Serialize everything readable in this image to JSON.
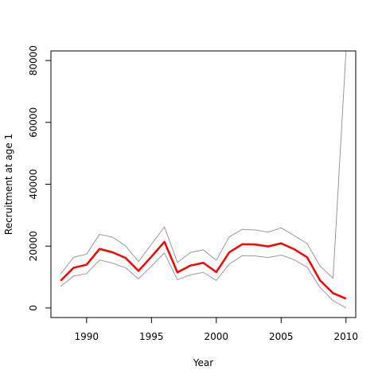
{
  "chart_data": {
    "type": "line",
    "title": "",
    "xlabel": "Year",
    "ylabel": "Recruitment at age 1",
    "xlim": [
      1987.25,
      2010.75
    ],
    "ylim": [
      -3100,
      83100
    ],
    "xticks": [
      1990,
      1995,
      2000,
      2005,
      2010
    ],
    "yticks": [
      0,
      20000,
      40000,
      60000,
      80000
    ],
    "x": [
      1988,
      1989,
      1990,
      1991,
      1992,
      1993,
      1994,
      1995,
      1996,
      1997,
      1998,
      1999,
      2000,
      2001,
      2002,
      2003,
      2004,
      2005,
      2006,
      2007,
      2008,
      2009,
      2010
    ],
    "series": [
      {
        "name": "",
        "role": "estimate",
        "color": "#ff0000",
        "values": [
          8800,
          13000,
          14000,
          19100,
          18000,
          16200,
          12000,
          16600,
          21400,
          11500,
          13700,
          14600,
          11600,
          18000,
          20600,
          20500,
          19900,
          20900,
          19000,
          16400,
          8900,
          4800,
          3000
        ]
      },
      {
        "name": "",
        "role": "upper bound",
        "color": "#999999",
        "values": [
          10900,
          16400,
          17400,
          23800,
          22900,
          20100,
          15000,
          20600,
          26200,
          14700,
          17900,
          18800,
          15400,
          23000,
          25400,
          25200,
          24500,
          25900,
          23400,
          20800,
          13600,
          9600,
          83100
        ]
      },
      {
        "name": "",
        "role": "lower bound",
        "color": "#999999",
        "values": [
          7000,
          10300,
          11100,
          15500,
          14500,
          13000,
          9400,
          13500,
          17800,
          9100,
          10700,
          11500,
          8900,
          14200,
          16900,
          16800,
          16300,
          17100,
          15600,
          13200,
          6600,
          2400,
          0
        ]
      }
    ],
    "grid": false,
    "legend": "none"
  }
}
